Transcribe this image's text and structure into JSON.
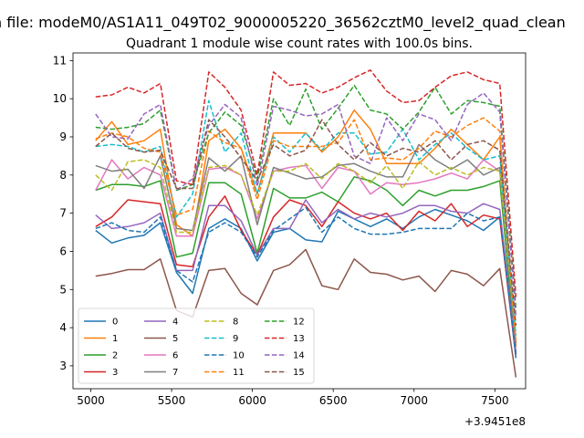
{
  "chart_data": {
    "type": "line",
    "suptitle": "n file: modeM0/AS1A11_049T02_9000005220_36562cztM0_level2_quad_clean",
    "title": "Quadrant 1 module wise count rates with 100.0s bins.",
    "xlabel": "",
    "ylabel": "",
    "x_offset_label": "+3.9451e8",
    "xlim": [
      4890,
      7690
    ],
    "ylim": [
      2.4,
      11.2
    ],
    "xticks": [
      5000,
      5500,
      6000,
      6500,
      7000,
      7500
    ],
    "yticks": [
      3,
      4,
      5,
      6,
      7,
      8,
      9,
      10,
      11
    ],
    "legend_position": "lower-left",
    "x": [
      5030,
      5130,
      5230,
      5330,
      5430,
      5530,
      5630,
      5730,
      5830,
      5930,
      6030,
      6130,
      6230,
      6330,
      6430,
      6530,
      6630,
      6730,
      6830,
      6930,
      7030,
      7130,
      7230,
      7330,
      7430,
      7530,
      7630
    ],
    "series": [
      {
        "name": "0",
        "color": "#1f77b4",
        "dash": "solid",
        "values": [
          6.55,
          6.22,
          6.35,
          6.42,
          6.75,
          5.45,
          4.9,
          6.6,
          6.85,
          6.6,
          5.75,
          6.5,
          6.6,
          6.3,
          6.25,
          7.05,
          6.85,
          6.65,
          6.85,
          6.6,
          6.9,
          7.1,
          6.95,
          6.8,
          6.55,
          6.9,
          3.2
        ]
      },
      {
        "name": "1",
        "color": "#ff7f0e",
        "dash": "solid",
        "values": [
          8.9,
          9.4,
          8.8,
          8.9,
          9.2,
          6.7,
          6.4,
          8.9,
          9.2,
          8.7,
          7.5,
          9.1,
          9.1,
          9.1,
          8.6,
          9.0,
          9.7,
          9.2,
          8.3,
          8.3,
          8.3,
          8.7,
          9.2,
          8.8,
          8.4,
          9.0,
          3.5
        ]
      },
      {
        "name": "2",
        "color": "#2ca02c",
        "dash": "solid",
        "values": [
          7.6,
          7.75,
          7.75,
          7.7,
          7.85,
          5.85,
          5.95,
          7.8,
          7.8,
          7.5,
          5.95,
          7.65,
          7.4,
          7.4,
          7.55,
          7.3,
          7.95,
          7.85,
          7.6,
          7.2,
          7.6,
          7.45,
          7.6,
          7.6,
          7.7,
          7.85,
          3.3
        ]
      },
      {
        "name": "3",
        "color": "#d62728",
        "dash": "solid",
        "values": [
          6.65,
          6.9,
          7.35,
          7.3,
          7.25,
          5.65,
          5.6,
          6.9,
          7.45,
          6.55,
          5.9,
          6.9,
          7.35,
          7.2,
          6.65,
          7.3,
          7.0,
          6.85,
          7.0,
          6.55,
          7.05,
          6.8,
          7.25,
          6.65,
          6.95,
          6.85,
          3.3
        ]
      },
      {
        "name": "4",
        "color": "#9467bd",
        "dash": "solid",
        "values": [
          6.95,
          6.6,
          6.65,
          6.75,
          7.0,
          5.5,
          5.5,
          7.2,
          7.2,
          6.8,
          5.9,
          6.6,
          6.6,
          7.35,
          6.75,
          7.1,
          6.85,
          7.0,
          6.9,
          7.0,
          7.2,
          7.2,
          7.05,
          7.0,
          7.25,
          7.1,
          3.35
        ]
      },
      {
        "name": "5",
        "color": "#8c564b",
        "dash": "solid",
        "values": [
          5.35,
          5.42,
          5.52,
          5.52,
          5.8,
          4.45,
          4.28,
          5.5,
          5.55,
          4.9,
          4.6,
          5.5,
          5.65,
          6.05,
          5.1,
          5.0,
          5.8,
          5.45,
          5.4,
          5.25,
          5.35,
          4.95,
          5.5,
          5.4,
          5.1,
          5.55,
          2.7
        ]
      },
      {
        "name": "6",
        "color": "#e377c2",
        "dash": "solid",
        "values": [
          7.6,
          8.4,
          7.9,
          8.2,
          8.0,
          6.4,
          6.4,
          8.15,
          8.2,
          8.0,
          6.85,
          8.1,
          8.2,
          8.25,
          7.65,
          8.2,
          8.1,
          7.5,
          7.8,
          7.75,
          7.8,
          7.9,
          8.05,
          7.9,
          8.4,
          8.1,
          3.6
        ]
      },
      {
        "name": "7",
        "color": "#7f7f7f",
        "dash": "solid",
        "values": [
          8.25,
          8.1,
          8.15,
          7.65,
          8.5,
          6.6,
          6.55,
          8.45,
          8.1,
          8.5,
          6.7,
          8.2,
          8.05,
          7.9,
          7.95,
          8.25,
          8.3,
          8.1,
          7.95,
          7.95,
          8.8,
          8.4,
          8.15,
          8.4,
          8.0,
          8.2,
          3.6
        ]
      },
      {
        "name": "8",
        "color": "#bcbd22",
        "dash": "dashed",
        "values": [
          8.0,
          7.6,
          8.35,
          8.4,
          8.2,
          6.5,
          6.5,
          8.2,
          8.25,
          8.0,
          6.95,
          8.1,
          8.1,
          8.3,
          7.9,
          8.3,
          8.1,
          7.8,
          8.25,
          7.65,
          8.35,
          8.0,
          8.2,
          8.0,
          8.2,
          8.1,
          3.7
        ]
      },
      {
        "name": "9",
        "color": "#17becf",
        "dash": "dashed",
        "values": [
          8.75,
          8.8,
          8.75,
          8.6,
          8.75,
          6.9,
          7.5,
          9.95,
          8.6,
          9.1,
          7.5,
          9.0,
          8.6,
          9.1,
          8.65,
          9.1,
          9.1,
          8.55,
          8.6,
          9.2,
          8.4,
          8.8,
          9.1,
          8.7,
          8.4,
          8.5,
          3.8
        ]
      },
      {
        "name": "10",
        "color": "#1f77b4",
        "dash": "dashed",
        "values": [
          6.6,
          6.75,
          6.55,
          6.5,
          6.9,
          5.5,
          5.2,
          6.5,
          6.75,
          6.5,
          5.85,
          6.55,
          6.85,
          7.15,
          6.5,
          6.9,
          6.6,
          6.45,
          6.45,
          6.5,
          6.6,
          6.6,
          6.6,
          7.0,
          6.8,
          6.9,
          3.3
        ]
      },
      {
        "name": "11",
        "color": "#ff7f0e",
        "dash": "dashed",
        "values": [
          8.95,
          9.1,
          9.0,
          8.7,
          8.6,
          6.95,
          7.1,
          9.15,
          8.85,
          8.7,
          7.35,
          8.9,
          8.75,
          8.75,
          8.75,
          8.85,
          9.45,
          8.4,
          8.45,
          8.4,
          8.7,
          9.15,
          9.0,
          9.3,
          9.5,
          9.15,
          3.6
        ]
      },
      {
        "name": "12",
        "color": "#2ca02c",
        "dash": "dashed",
        "values": [
          9.25,
          9.2,
          9.25,
          9.35,
          9.7,
          7.6,
          7.75,
          9.1,
          9.65,
          9.3,
          7.9,
          10.0,
          9.3,
          10.25,
          9.2,
          9.75,
          10.35,
          9.7,
          9.6,
          9.2,
          9.65,
          10.3,
          9.6,
          9.95,
          9.9,
          9.8,
          4.5
        ]
      },
      {
        "name": "13",
        "color": "#d62728",
        "dash": "dashed",
        "values": [
          10.05,
          10.1,
          10.3,
          10.15,
          10.4,
          7.85,
          7.75,
          10.7,
          10.3,
          9.7,
          8.0,
          10.7,
          10.35,
          10.4,
          10.15,
          10.3,
          10.55,
          10.75,
          10.2,
          9.9,
          9.95,
          10.3,
          10.6,
          10.7,
          10.5,
          10.4,
          4.8
        ]
      },
      {
        "name": "14",
        "color": "#9467bd",
        "dash": "dashed",
        "values": [
          9.6,
          9.0,
          8.95,
          9.6,
          9.85,
          7.6,
          7.9,
          9.3,
          9.85,
          9.5,
          7.7,
          9.8,
          9.7,
          9.55,
          9.6,
          9.85,
          8.5,
          8.3,
          9.5,
          8.9,
          9.6,
          9.45,
          8.9,
          9.85,
          10.15,
          9.65,
          4.3
        ]
      },
      {
        "name": "15",
        "color": "#8c564b",
        "dash": "dashed",
        "values": [
          8.75,
          9.1,
          8.7,
          8.6,
          8.65,
          7.65,
          7.65,
          9.45,
          9.0,
          8.45,
          7.85,
          8.8,
          8.5,
          8.65,
          9.45,
          8.8,
          8.4,
          8.85,
          8.5,
          8.7,
          8.6,
          8.9,
          8.4,
          8.8,
          8.9,
          8.65,
          4.05
        ]
      }
    ]
  }
}
